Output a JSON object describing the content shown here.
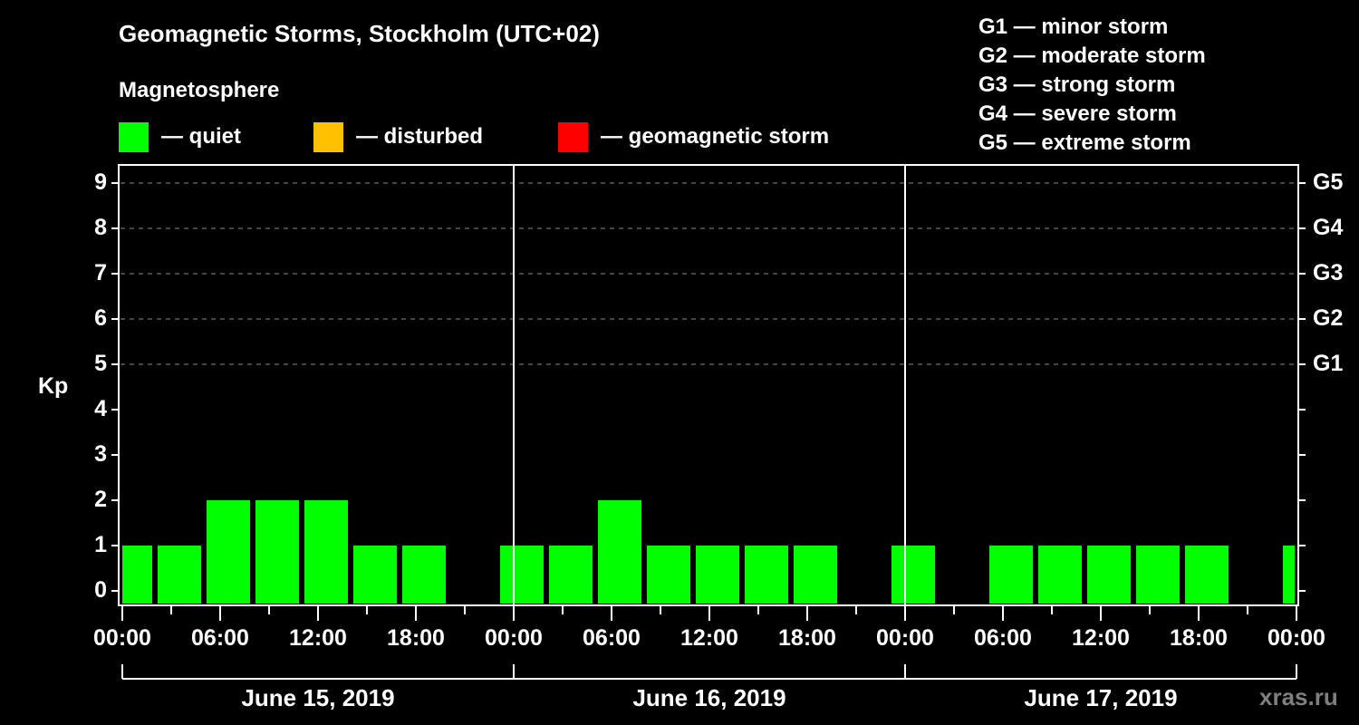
{
  "title": "Geomagnetic Storms, Stockholm (UTC+02)",
  "subtitle": "Magnetosphere",
  "legend": [
    {
      "label": "— quiet",
      "color": "#00ff00"
    },
    {
      "label": "— disturbed",
      "color": "#ffc000"
    },
    {
      "label": "— geomagnetic storm",
      "color": "#ff0000"
    }
  ],
  "g_scale": [
    "G1 — minor storm",
    "G2 — moderate storm",
    "G3 — strong storm",
    "G4 — severe storm",
    "G5 — extreme storm"
  ],
  "y_axis_label": "Kp",
  "y_ticks": [
    "0",
    "1",
    "2",
    "3",
    "4",
    "5",
    "6",
    "7",
    "8",
    "9"
  ],
  "right_ticks": [
    {
      "kp": 5,
      "label": "G1"
    },
    {
      "kp": 6,
      "label": "G2"
    },
    {
      "kp": 7,
      "label": "G3"
    },
    {
      "kp": 8,
      "label": "G4"
    },
    {
      "kp": 9,
      "label": "G5"
    }
  ],
  "x_ticks": [
    "00:00",
    "06:00",
    "12:00",
    "18:00",
    "00:00",
    "06:00",
    "12:00",
    "18:00",
    "00:00",
    "06:00",
    "12:00",
    "18:00",
    "00:00"
  ],
  "dates": [
    "June 15, 2019",
    "June 16, 2019",
    "June 17, 2019"
  ],
  "watermark": "xras.ru",
  "chart_data": {
    "type": "bar",
    "title": "Geomagnetic Storms, Stockholm (UTC+02)",
    "subtitle": "Magnetosphere",
    "xlabel": "",
    "ylabel": "Kp",
    "ylim": [
      0,
      9
    ],
    "grid": "dashed horizontal at Kp 5-9",
    "legend_position": "top",
    "categories": [
      "Jun 15 00:00",
      "Jun 15 03:00",
      "Jun 15 06:00",
      "Jun 15 09:00",
      "Jun 15 12:00",
      "Jun 15 15:00",
      "Jun 15 18:00",
      "Jun 15 21:00",
      "Jun 16 00:00",
      "Jun 16 03:00",
      "Jun 16 06:00",
      "Jun 16 09:00",
      "Jun 16 12:00",
      "Jun 16 15:00",
      "Jun 16 18:00",
      "Jun 16 21:00",
      "Jun 17 00:00",
      "Jun 17 03:00",
      "Jun 17 06:00",
      "Jun 17 09:00",
      "Jun 17 12:00",
      "Jun 17 15:00",
      "Jun 17 18:00",
      "Jun 17 21:00",
      "Jun 18 00:00"
    ],
    "values": [
      1,
      1,
      2,
      2,
      2,
      1,
      1,
      0,
      1,
      1,
      2,
      1,
      1,
      1,
      1,
      0,
      1,
      0,
      1,
      1,
      1,
      1,
      1,
      0,
      1
    ],
    "bar_color": "#00ff00",
    "series_status": "quiet",
    "right_axis": {
      "5": "G1",
      "6": "G2",
      "7": "G3",
      "8": "G4",
      "9": "G5"
    }
  }
}
